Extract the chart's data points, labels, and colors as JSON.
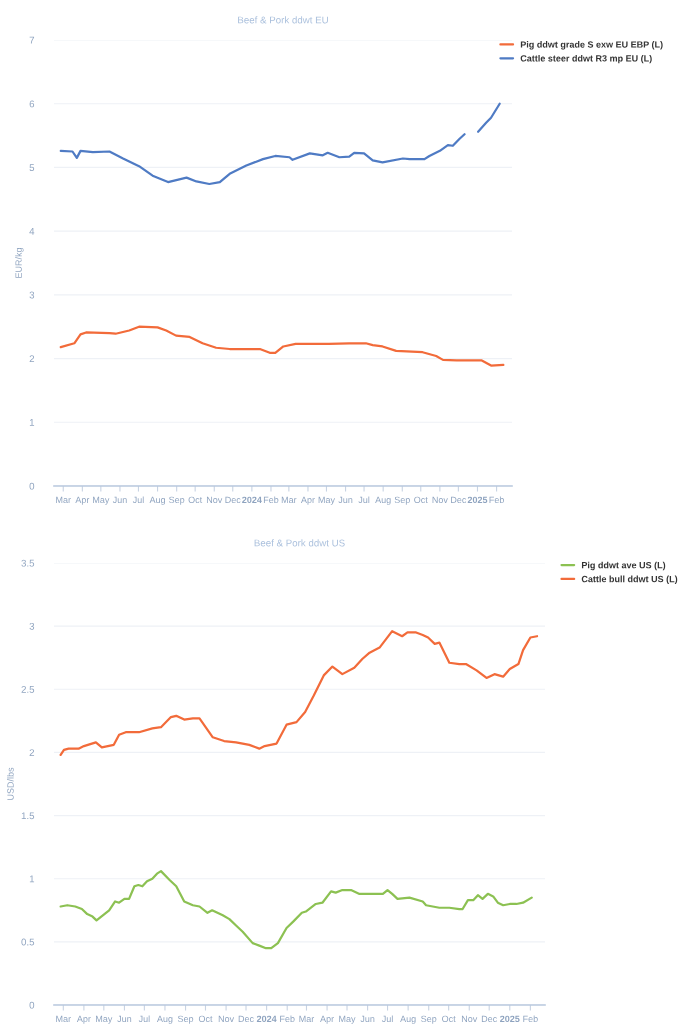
{
  "chart_data": [
    {
      "type": "line",
      "title": "Beef & Pork ddwt EU",
      "ylabel": "EUR/kg",
      "legend": "top right",
      "grid": "y",
      "marker": "none",
      "line_style": "solid",
      "xlim": [
        "2023-02-14",
        "2025-02-26"
      ],
      "ylim": [
        0,
        7
      ],
      "yticks": [
        0,
        1,
        2,
        3,
        4,
        5,
        6,
        7
      ],
      "xticks": [
        {
          "value": "2023-03-01",
          "label": "Mar"
        },
        {
          "value": "2023-04-01",
          "label": "Apr"
        },
        {
          "value": "2023-05-01",
          "label": "May"
        },
        {
          "value": "2023-06-01",
          "label": "Jun"
        },
        {
          "value": "2023-07-01",
          "label": "Jul"
        },
        {
          "value": "2023-08-01",
          "label": "Aug"
        },
        {
          "value": "2023-09-01",
          "label": "Sep"
        },
        {
          "value": "2023-10-01",
          "label": "Oct"
        },
        {
          "value": "2023-11-01",
          "label": "Nov"
        },
        {
          "value": "2023-12-01",
          "label": "Dec"
        },
        {
          "value": "2024-01-01",
          "label": "2024"
        },
        {
          "value": "2024-02-01",
          "label": "Feb"
        },
        {
          "value": "2024-03-01",
          "label": "Mar"
        },
        {
          "value": "2024-04-01",
          "label": "Apr"
        },
        {
          "value": "2024-05-01",
          "label": "May"
        },
        {
          "value": "2024-06-01",
          "label": "Jun"
        },
        {
          "value": "2024-07-01",
          "label": "Jul"
        },
        {
          "value": "2024-08-01",
          "label": "Aug"
        },
        {
          "value": "2024-09-01",
          "label": "Sep"
        },
        {
          "value": "2024-10-01",
          "label": "Oct"
        },
        {
          "value": "2024-11-01",
          "label": "Nov"
        },
        {
          "value": "2024-12-01",
          "label": "Dec"
        },
        {
          "value": "2025-01-01",
          "label": "2025"
        },
        {
          "value": "2025-02-01",
          "label": "Feb"
        }
      ],
      "series": [
        {
          "name": "Pig ddwt grade S exw EU EBP (L)",
          "color": "#f26b3a",
          "x": [
            "2023-02-25",
            "2023-03-19",
            "2023-03-29",
            "2023-04-07",
            "2023-05-15",
            "2023-05-25",
            "2023-06-16",
            "2023-07-02",
            "2023-08-01",
            "2023-08-15",
            "2023-08-31",
            "2023-09-22",
            "2023-10-13",
            "2023-11-04",
            "2023-11-26",
            "2024-01-14",
            "2024-01-30",
            "2024-02-08",
            "2024-02-21",
            "2024-03-12",
            "2024-05-05",
            "2024-06-07",
            "2024-07-04",
            "2024-07-15",
            "2024-07-31",
            "2024-08-22",
            "2024-10-04",
            "2024-10-26",
            "2024-11-06",
            "2024-11-28",
            "2025-01-08",
            "2025-01-23",
            "2025-02-12"
          ],
          "values": [
            2.18,
            2.24,
            2.38,
            2.41,
            2.4,
            2.39,
            2.44,
            2.5,
            2.49,
            2.44,
            2.36,
            2.34,
            2.24,
            2.17,
            2.15,
            2.15,
            2.09,
            2.09,
            2.19,
            2.23,
            2.23,
            2.24,
            2.24,
            2.21,
            2.19,
            2.12,
            2.1,
            2.04,
            1.98,
            1.97,
            1.97,
            1.89,
            1.9
          ]
        },
        {
          "name": "Cattle steer ddwt R3 mp EU (L)",
          "color": "#4f7bc4",
          "x": [
            "2023-02-25",
            "2023-03-16",
            "2023-03-23",
            "2023-03-29",
            "2023-04-18",
            "2023-05-15",
            "2023-06-06",
            "2023-07-02",
            "2023-07-24",
            "2023-08-18",
            "2023-09-17",
            "2023-10-03",
            "2023-10-24",
            "2023-11-10",
            "2023-11-26",
            "2023-12-23",
            "2024-01-19",
            "2024-02-08",
            "2024-03-02",
            "2024-03-07",
            "2024-04-04",
            "2024-04-25",
            "2024-05-03",
            "2024-05-22",
            "2024-06-07",
            "2024-06-15",
            "2024-07-01",
            "2024-07-15",
            "2024-07-31",
            "2024-09-02",
            "2024-09-13",
            "2024-10-07",
            "2024-10-15",
            "2024-11-01",
            "2024-11-14",
            "2024-11-22",
            "2024-12-03",
            "2024-12-11",
            "2024-12-22",
            "2025-01-02",
            "2025-01-15",
            "2025-01-23",
            "2025-02-06"
          ],
          "values": [
            5.26,
            5.25,
            5.15,
            5.26,
            5.24,
            5.25,
            5.14,
            5.02,
            4.87,
            4.77,
            4.84,
            4.78,
            4.74,
            4.77,
            4.9,
            5.03,
            5.13,
            5.18,
            5.16,
            5.12,
            5.22,
            5.19,
            5.23,
            5.16,
            5.17,
            5.23,
            5.22,
            5.11,
            5.08,
            5.14,
            5.13,
            5.13,
            5.18,
            5.26,
            5.35,
            5.34,
            5.45,
            5.52,
            null,
            5.56,
            5.7,
            5.78,
            6.0
          ]
        }
      ]
    },
    {
      "type": "line",
      "title": "Beef & Pork ddwt US",
      "ylabel": "USD/lbs",
      "legend": "top right",
      "grid": "y",
      "marker": "none",
      "line_style": "solid",
      "xlim": [
        "2023-02-15",
        "2025-02-23"
      ],
      "ylim": [
        0,
        3.5
      ],
      "yticks": [
        0,
        0.5,
        1,
        1.5,
        2,
        2.5,
        3,
        3.5
      ],
      "xticks": [
        {
          "value": "2023-03-01",
          "label": "Mar"
        },
        {
          "value": "2023-04-01",
          "label": "Apr"
        },
        {
          "value": "2023-05-01",
          "label": "May"
        },
        {
          "value": "2023-06-01",
          "label": "Jun"
        },
        {
          "value": "2023-07-01",
          "label": "Jul"
        },
        {
          "value": "2023-08-01",
          "label": "Aug"
        },
        {
          "value": "2023-09-01",
          "label": "Sep"
        },
        {
          "value": "2023-10-01",
          "label": "Oct"
        },
        {
          "value": "2023-11-01",
          "label": "Nov"
        },
        {
          "value": "2023-12-01",
          "label": "Dec"
        },
        {
          "value": "2024-01-01",
          "label": "2024"
        },
        {
          "value": "2024-02-01",
          "label": "Feb"
        },
        {
          "value": "2024-03-01",
          "label": "Mar"
        },
        {
          "value": "2024-04-01",
          "label": "Apr"
        },
        {
          "value": "2024-05-01",
          "label": "May"
        },
        {
          "value": "2024-06-01",
          "label": "Jun"
        },
        {
          "value": "2024-07-01",
          "label": "Jul"
        },
        {
          "value": "2024-08-01",
          "label": "Aug"
        },
        {
          "value": "2024-09-01",
          "label": "Sep"
        },
        {
          "value": "2024-10-01",
          "label": "Oct"
        },
        {
          "value": "2024-11-01",
          "label": "Nov"
        },
        {
          "value": "2024-12-01",
          "label": "Dec"
        },
        {
          "value": "2025-01-01",
          "label": "2025"
        },
        {
          "value": "2025-02-01",
          "label": "Feb"
        }
      ],
      "series": [
        {
          "name": "Pig ddwt ave US (L)",
          "color": "#8cc152",
          "x": [
            "2023-02-25",
            "2023-03-07",
            "2023-03-19",
            "2023-03-29",
            "2023-04-06",
            "2023-04-14",
            "2023-04-20",
            "2023-05-09",
            "2023-05-18",
            "2023-05-24",
            "2023-06-01",
            "2023-06-08",
            "2023-06-16",
            "2023-06-22",
            "2023-06-28",
            "2023-07-05",
            "2023-07-13",
            "2023-07-20",
            "2023-07-26",
            "2023-08-08",
            "2023-08-18",
            "2023-08-30",
            "2023-09-12",
            "2023-09-22",
            "2023-10-04",
            "2023-10-11",
            "2023-10-27",
            "2023-11-06",
            "2023-11-16",
            "2023-11-26",
            "2023-12-11",
            "2023-12-21",
            "2023-12-31",
            "2024-01-08",
            "2024-01-18",
            "2024-01-31",
            "2024-02-10",
            "2024-02-23",
            "2024-02-29",
            "2024-03-15",
            "2024-03-25",
            "2024-04-07",
            "2024-04-14",
            "2024-04-24",
            "2024-05-07",
            "2024-05-19",
            "2024-06-09",
            "2024-06-24",
            "2024-07-01",
            "2024-07-08",
            "2024-07-16",
            "2024-08-03",
            "2024-08-23",
            "2024-08-28",
            "2024-09-17",
            "2024-10-02",
            "2024-10-17",
            "2024-10-22",
            "2024-10-30",
            "2024-11-07",
            "2024-11-14",
            "2024-11-21",
            "2024-11-29",
            "2024-12-07",
            "2024-12-14",
            "2024-12-22",
            "2025-01-01",
            "2025-01-11",
            "2025-01-21",
            "2025-02-03"
          ],
          "values": [
            0.78,
            0.79,
            0.78,
            0.76,
            0.72,
            0.7,
            0.67,
            0.75,
            0.82,
            0.81,
            0.84,
            0.84,
            0.94,
            0.95,
            0.94,
            0.98,
            1.0,
            1.04,
            1.06,
            0.99,
            0.94,
            0.82,
            0.79,
            0.78,
            0.73,
            0.75,
            0.71,
            0.68,
            0.63,
            0.58,
            0.49,
            0.47,
            0.45,
            0.45,
            0.49,
            0.61,
            0.66,
            0.73,
            0.74,
            0.8,
            0.81,
            0.9,
            0.89,
            0.91,
            0.91,
            0.88,
            0.88,
            0.88,
            0.91,
            0.88,
            0.84,
            0.85,
            0.82,
            0.79,
            0.77,
            0.77,
            0.76,
            0.76,
            0.83,
            0.83,
            0.87,
            0.84,
            0.88,
            0.86,
            0.81,
            0.79,
            0.8,
            0.8,
            0.81,
            0.85
          ]
        },
        {
          "name": "Cattle bull ddwt US (L)",
          "color": "#f26b3a",
          "x": [
            "2023-02-25",
            "2023-03-02",
            "2023-03-09",
            "2023-03-24",
            "2023-04-01",
            "2023-04-19",
            "2023-04-28",
            "2023-05-16",
            "2023-05-24",
            "2023-06-03",
            "2023-06-23",
            "2023-07-13",
            "2023-07-26",
            "2023-08-10",
            "2023-08-18",
            "2023-08-30",
            "2023-09-12",
            "2023-09-22",
            "2023-10-12",
            "2023-10-29",
            "2023-11-16",
            "2023-12-06",
            "2023-12-21",
            "2023-12-29",
            "2024-01-16",
            "2024-01-31",
            "2024-02-15",
            "2024-02-28",
            "2024-03-12",
            "2024-03-27",
            "2024-04-09",
            "2024-04-24",
            "2024-05-12",
            "2024-05-24",
            "2024-06-04",
            "2024-06-19",
            "2024-07-08",
            "2024-07-23",
            "2024-07-31",
            "2024-08-13",
            "2024-08-23",
            "2024-08-31",
            "2024-09-10",
            "2024-09-17",
            "2024-10-02",
            "2024-10-17",
            "2024-10-27",
            "2024-11-12",
            "2024-11-27",
            "2024-12-09",
            "2024-12-22",
            "2025-01-01",
            "2025-01-14",
            "2025-01-21",
            "2025-02-01",
            "2025-02-11"
          ],
          "values": [
            1.98,
            2.02,
            2.03,
            2.03,
            2.05,
            2.08,
            2.04,
            2.06,
            2.14,
            2.16,
            2.16,
            2.19,
            2.2,
            2.28,
            2.29,
            2.26,
            2.27,
            2.27,
            2.12,
            2.09,
            2.08,
            2.06,
            2.03,
            2.05,
            2.07,
            2.22,
            2.24,
            2.32,
            2.45,
            2.61,
            2.68,
            2.62,
            2.67,
            2.74,
            2.79,
            2.83,
            2.96,
            2.92,
            2.95,
            2.95,
            2.93,
            2.91,
            2.86,
            2.87,
            2.71,
            2.7,
            2.7,
            2.65,
            2.59,
            2.62,
            2.6,
            2.66,
            2.7,
            2.81,
            2.91,
            2.92
          ]
        }
      ]
    }
  ]
}
